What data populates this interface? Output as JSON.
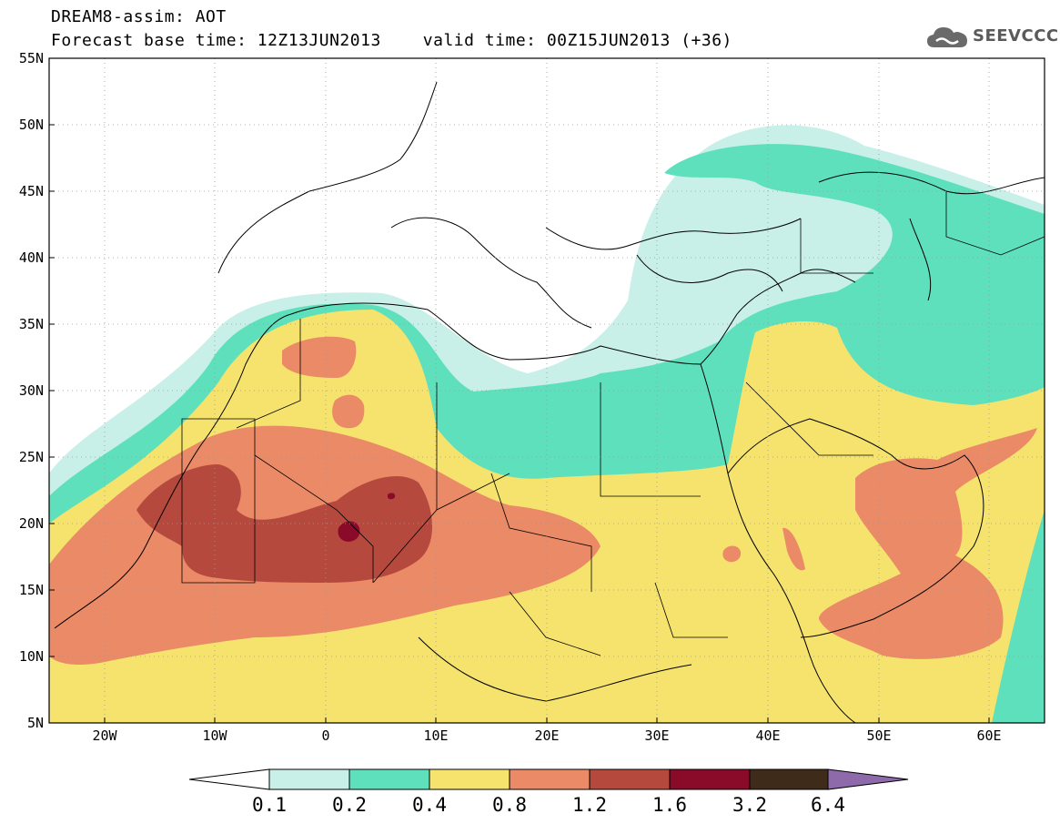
{
  "title": {
    "line1": "DREAM8-assim: AOT",
    "base_time": "Forecast base time: 12Z13JUN2013",
    "valid_time": "valid time: 00Z15JUN2013 (+36)"
  },
  "logo": {
    "text": "SEEVCCC",
    "icon": "cloud-icon"
  },
  "axes": {
    "lat_labels": [
      "55N",
      "50N",
      "45N",
      "40N",
      "35N",
      "30N",
      "25N",
      "20N",
      "15N",
      "10N",
      "5N"
    ],
    "lon_labels": [
      "20W",
      "10W",
      "0",
      "10E",
      "20E",
      "30E",
      "40E",
      "50E",
      "60E"
    ],
    "lat_range": [
      5,
      55
    ],
    "lon_range": [
      -25,
      65
    ],
    "grid": true
  },
  "colorbar": {
    "labels": [
      "0.1",
      "0.2",
      "0.4",
      "0.8",
      "1.2",
      "1.6",
      "3.2",
      "6.4"
    ],
    "colors": [
      "#ffffff",
      "#c8f0e8",
      "#5ee0bc",
      "#f5e36e",
      "#ea8a66",
      "#b5493e",
      "#8a0a2a",
      "#3f2b1a",
      "#8e6aaa"
    ]
  },
  "legend_colors": {
    "lvl1": "#c8f0e8",
    "lvl2": "#5ee0bc",
    "lvl3": "#f5e36e",
    "lvl4": "#ea8a66",
    "lvl5": "#b5493e",
    "lvl6": "#8a0a2a"
  }
}
